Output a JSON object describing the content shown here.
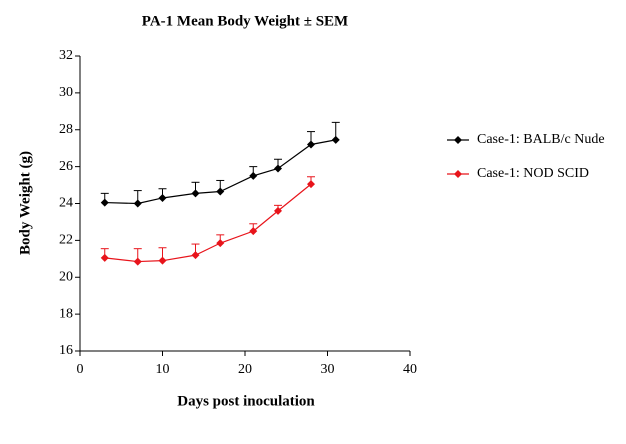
{
  "chart_data": {
    "type": "line",
    "title": "PA-1 Mean Body Weight ± SEM",
    "xlabel": "Days post inoculation",
    "ylabel": "Body Weight (g)",
    "xlim": [
      0,
      40
    ],
    "xticks": [
      0,
      10,
      20,
      30,
      40
    ],
    "ylim": [
      16,
      32
    ],
    "yticks": [
      16,
      18,
      20,
      22,
      24,
      26,
      28,
      30,
      32
    ],
    "legend": "right",
    "series": [
      {
        "name": "Case-1: BALB/c Nude",
        "color": "#000000",
        "x": [
          3,
          7,
          10,
          14,
          17,
          21,
          24,
          28,
          31
        ],
        "values": [
          24.05,
          24.0,
          24.3,
          24.55,
          24.65,
          25.5,
          25.9,
          27.2,
          27.45
        ],
        "errors": [
          0.5,
          0.7,
          0.5,
          0.6,
          0.6,
          0.5,
          0.5,
          0.7,
          0.95
        ]
      },
      {
        "name": "Case-1: NOD SCID",
        "color": "#e8141b",
        "x": [
          3,
          7,
          10,
          14,
          17,
          21,
          24,
          28
        ],
        "values": [
          21.05,
          20.85,
          20.9,
          21.2,
          21.85,
          22.5,
          23.6,
          25.05
        ],
        "errors": [
          0.5,
          0.7,
          0.7,
          0.6,
          0.45,
          0.4,
          0.3,
          0.4
        ]
      }
    ]
  }
}
